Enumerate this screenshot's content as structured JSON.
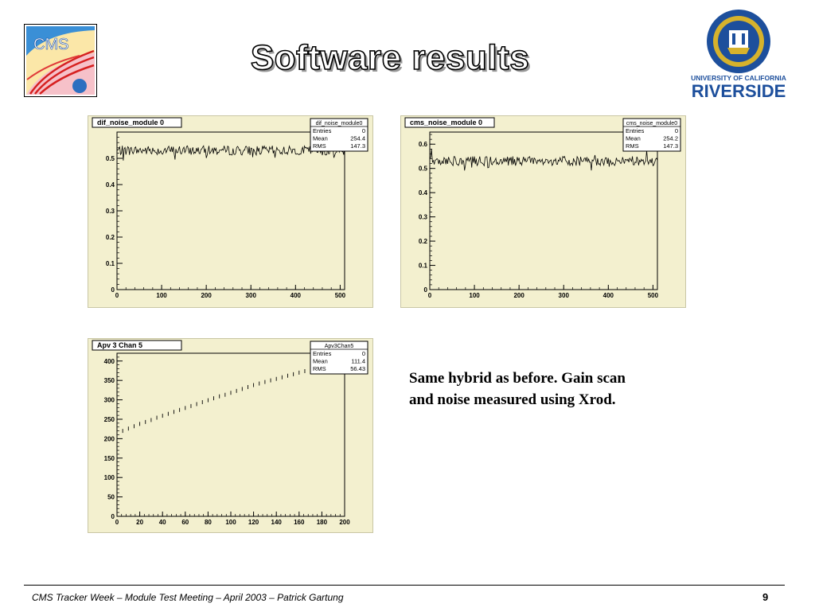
{
  "slide": {
    "title": "Software results",
    "caption_line1": "Same hybrid as before. Gain scan",
    "caption_line2": "and noise measured using Xrod.",
    "footer": "CMS Tracker Week – Module Test Meeting – April 2003 – Patrick Gartung",
    "page_number": "9",
    "logos": {
      "cms_text": "CMS",
      "ucr_top": "UNIVERSITY OF CALIFORNIA",
      "ucr_bottom": "RIVERSIDE",
      "ucr_color": "#1d4f9c",
      "ucr_gold": "#d6b22c"
    }
  },
  "chart_data": [
    {
      "type": "line",
      "title": "dif_noise_module 0",
      "xlim": [
        0,
        510
      ],
      "ylim": [
        0,
        0.6
      ],
      "x_ticks": [
        "0",
        "100",
        "200",
        "300",
        "400",
        "500"
      ],
      "y_ticks": [
        "0",
        "0.1",
        "0.2",
        "0.3",
        "0.4",
        "0.5"
      ],
      "stats": {
        "name": "dif_noise_module0",
        "rows": [
          [
            "Entries",
            "0"
          ],
          [
            "Mean",
            "254.4"
          ],
          [
            "RMS",
            "147.3"
          ]
        ]
      },
      "series": [
        {
          "baseline": 0.53,
          "spread": 0.018,
          "x_range": [
            0,
            510
          ]
        }
      ]
    },
    {
      "type": "line",
      "title": "cms_noise_module 0",
      "xlim": [
        0,
        510
      ],
      "ylim": [
        0,
        0.65
      ],
      "x_ticks": [
        "0",
        "100",
        "200",
        "300",
        "400",
        "500"
      ],
      "y_ticks": [
        "0",
        "0.1",
        "0.2",
        "0.3",
        "0.4",
        "0.5",
        "0.6"
      ],
      "stats": {
        "name": "cms_noise_module0",
        "rows": [
          [
            "Entries",
            "0"
          ],
          [
            "Mean",
            "254.2"
          ],
          [
            "RMS",
            "147.3"
          ]
        ]
      },
      "series": [
        {
          "baseline": 0.53,
          "spread": 0.02,
          "x_range": [
            0,
            510
          ]
        }
      ]
    },
    {
      "type": "scatter",
      "title": "Apv 3 Chan 5",
      "xlim": [
        0,
        200
      ],
      "ylim": [
        0,
        420
      ],
      "x_ticks": [
        "0",
        "20",
        "40",
        "60",
        "80",
        "100",
        "120",
        "140",
        "160",
        "180",
        "200"
      ],
      "y_ticks": [
        "0",
        "50",
        "100",
        "150",
        "200",
        "250",
        "300",
        "350",
        "400"
      ],
      "stats": {
        "name": "Apv3Chan5",
        "rows": [
          [
            "Entries",
            "0"
          ],
          [
            "Mean",
            "111.4"
          ],
          [
            "RMS",
            "56.43"
          ]
        ]
      },
      "x": [
        5,
        10,
        15,
        20,
        25,
        30,
        35,
        40,
        45,
        50,
        55,
        60,
        65,
        70,
        75,
        80,
        85,
        90,
        95,
        100,
        105,
        110,
        115,
        120,
        125,
        130,
        135,
        140,
        145,
        150,
        155,
        160,
        165,
        170
      ],
      "y": [
        220,
        226,
        232,
        238,
        243,
        248,
        254,
        259,
        264,
        269,
        274,
        279,
        284,
        289,
        294,
        299,
        304,
        309,
        313,
        318,
        323,
        328,
        333,
        338,
        342,
        346,
        350,
        354,
        358,
        362,
        366,
        370,
        374,
        377
      ]
    }
  ]
}
